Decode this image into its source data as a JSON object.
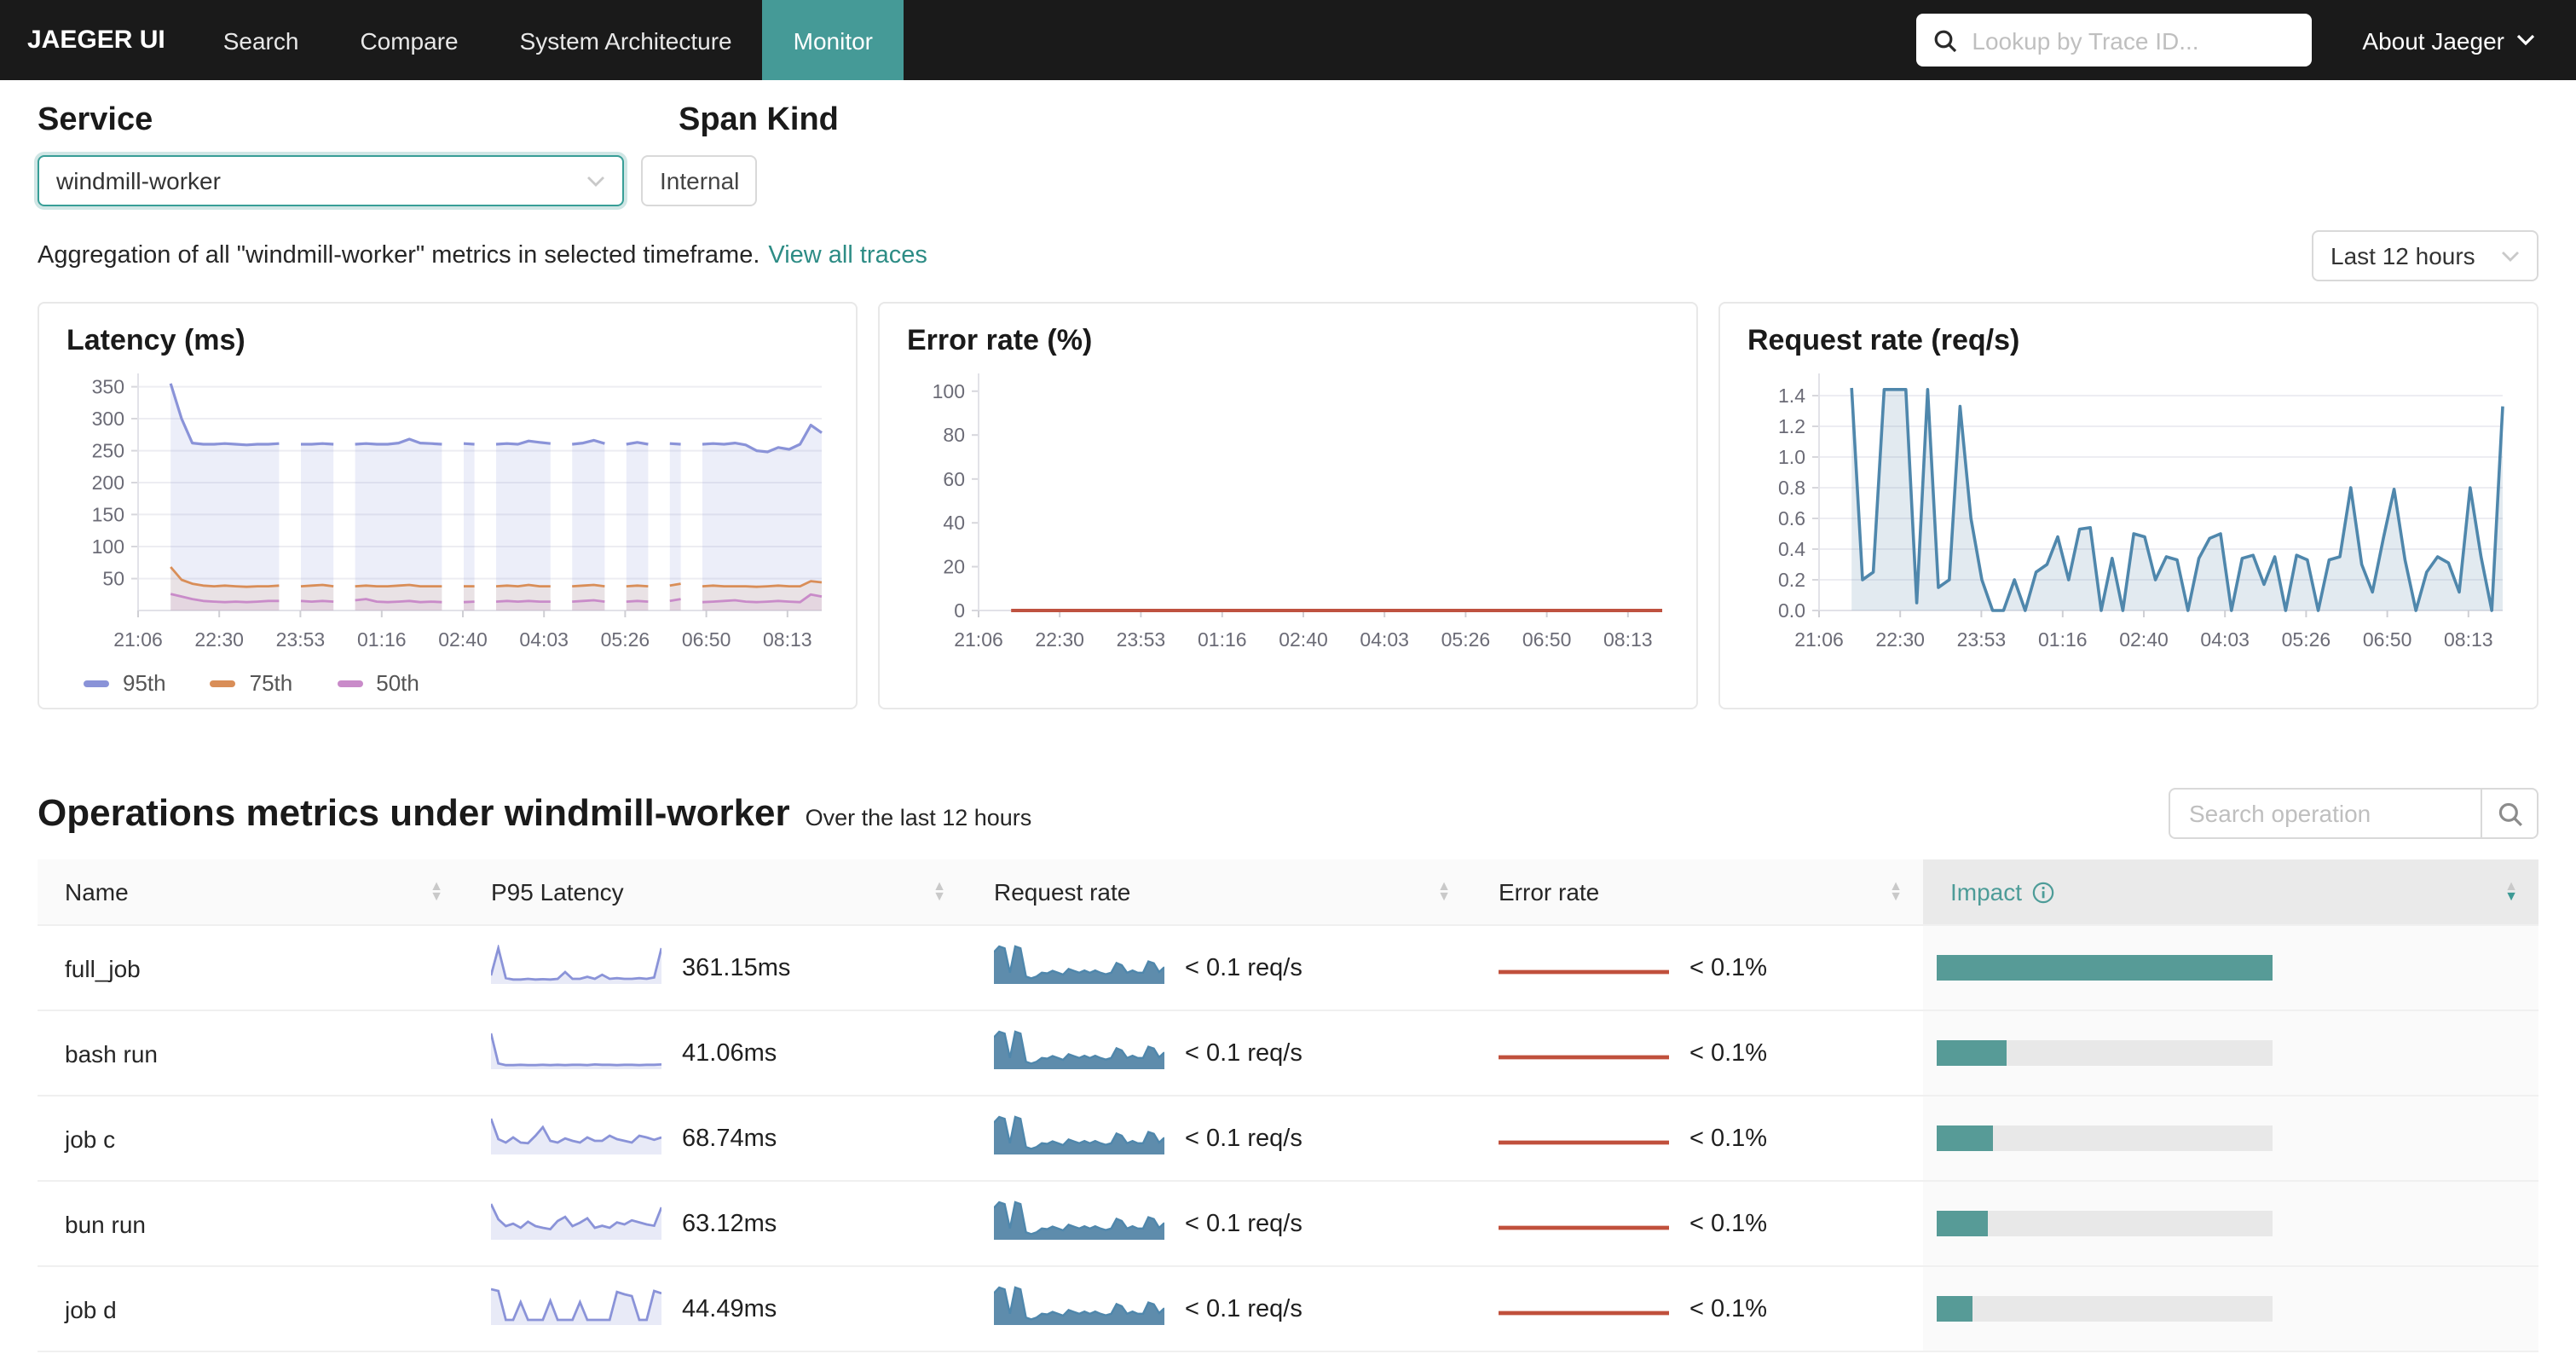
{
  "nav": {
    "brand": "JAEGER UI",
    "items": [
      {
        "label": "Search",
        "active": false
      },
      {
        "label": "Compare",
        "active": false
      },
      {
        "label": "System Architecture",
        "active": false
      },
      {
        "label": "Monitor",
        "active": true
      }
    ],
    "trace_search_placeholder": "Lookup by Trace ID...",
    "about_label": "About Jaeger"
  },
  "filters": {
    "service_label": "Service",
    "service_value": "windmill-worker",
    "span_kind_label": "Span Kind",
    "span_kind_value": "Internal",
    "aggregation_text": "Aggregation of all \"windmill-worker\" metrics in selected timeframe.",
    "view_all_traces_label": "View all traces",
    "timeframe_value": "Last 12 hours"
  },
  "colors": {
    "nav_bg": "#1a1a1a",
    "active_tab_teal": "#459a97",
    "link_teal": "#2d8c85",
    "impact_teal": "#579b97",
    "latency_95th": "#8a93d8",
    "latency_75th": "#d98e58",
    "latency_50th": "#c98bc9",
    "error_red": "#bf5240",
    "request_blue": "#4f87ac",
    "spark_latency": "#8a93d8",
    "spark_request_fill": "#5e8cac",
    "spark_error": "#c0503c"
  },
  "chart_data": [
    {
      "type": "line",
      "title": "Latency (ms)",
      "ylabel": "ms",
      "ylim": [
        0,
        360
      ],
      "yticks": [
        50,
        100,
        150,
        200,
        250,
        300,
        350
      ],
      "ydecimals": 0,
      "x_labels": [
        "21:06",
        "22:30",
        "23:53",
        "01:16",
        "02:40",
        "04:03",
        "05:26",
        "06:50",
        "08:13"
      ],
      "grid": true,
      "legend_position": "bottom",
      "series": [
        {
          "name": "95th",
          "color": "#8a93d8",
          "fill": "rgba(138,147,216,0.16)",
          "width": 1.6,
          "values": [
            null,
            null,
            null,
            355,
            300,
            262,
            260,
            260,
            261,
            260,
            259,
            260,
            260,
            261,
            null,
            260,
            260,
            261,
            260,
            null,
            260,
            261,
            260,
            260,
            262,
            268,
            262,
            261,
            260,
            null,
            261,
            260,
            null,
            260,
            261,
            260,
            265,
            263,
            261,
            null,
            260,
            262,
            266,
            261,
            null,
            260,
            263,
            260,
            null,
            261,
            260,
            null,
            260,
            261,
            260,
            262,
            259,
            250,
            248,
            255,
            252,
            260,
            290,
            278
          ]
        },
        {
          "name": "75th",
          "color": "#d98e58",
          "fill": "rgba(217,142,88,0.12)",
          "width": 1.4,
          "values": [
            null,
            null,
            null,
            68,
            48,
            42,
            39,
            38,
            39,
            38,
            37,
            38,
            38,
            39,
            null,
            38,
            39,
            40,
            38,
            null,
            38,
            39,
            38,
            38,
            39,
            40,
            38,
            38,
            38,
            null,
            38,
            38,
            null,
            38,
            39,
            38,
            40,
            38,
            38,
            null,
            38,
            39,
            40,
            38,
            null,
            38,
            39,
            38,
            null,
            39,
            42,
            null,
            38,
            39,
            38,
            38,
            38,
            37,
            38,
            39,
            38,
            38,
            46,
            44
          ]
        },
        {
          "name": "50th",
          "color": "#c98bc9",
          "fill": "rgba(201,139,201,0.14)",
          "width": 1.4,
          "values": [
            null,
            null,
            null,
            26,
            22,
            18,
            15,
            14,
            13,
            14,
            13,
            14,
            15,
            15,
            null,
            15,
            14,
            15,
            14,
            null,
            16,
            18,
            14,
            13,
            14,
            15,
            13,
            14,
            13,
            null,
            13,
            14,
            null,
            14,
            15,
            14,
            15,
            14,
            14,
            null,
            14,
            15,
            16,
            14,
            null,
            14,
            15,
            14,
            null,
            15,
            18,
            null,
            13,
            14,
            15,
            16,
            14,
            13,
            14,
            15,
            14,
            13,
            25,
            22
          ]
        }
      ]
    },
    {
      "type": "line",
      "title": "Error rate (%)",
      "ylabel": "%",
      "ylim": [
        0,
        105
      ],
      "yticks": [
        0,
        20,
        40,
        60,
        80,
        100
      ],
      "ydecimals": 0,
      "x_labels": [
        "21:06",
        "22:30",
        "23:53",
        "01:16",
        "02:40",
        "04:03",
        "05:26",
        "06:50",
        "08:13"
      ],
      "grid": false,
      "legend_position": "none",
      "series": [
        {
          "name": "error",
          "color": "#bf5240",
          "fill": null,
          "width": 2,
          "values": [
            null,
            null,
            null,
            0,
            0,
            0,
            0,
            0,
            0,
            0,
            0,
            0,
            0,
            0,
            0,
            0,
            0,
            0,
            0,
            0,
            0,
            0,
            0,
            0,
            0,
            0,
            0,
            0,
            0,
            0,
            0,
            0,
            0,
            0,
            0,
            0,
            0,
            0,
            0,
            0,
            0,
            0,
            0,
            0,
            0,
            0,
            0,
            0,
            0,
            0,
            0,
            0,
            0,
            0,
            0,
            0,
            0,
            0,
            0,
            0,
            0,
            0,
            0,
            0
          ]
        }
      ]
    },
    {
      "type": "line",
      "title": "Request rate (req/s)",
      "ylabel": "req/s",
      "ylim": [
        0,
        1.5
      ],
      "yticks": [
        0.0,
        0.2,
        0.4,
        0.6,
        0.8,
        1.0,
        1.2,
        1.4
      ],
      "ydecimals": 1,
      "x_labels": [
        "21:06",
        "22:30",
        "23:53",
        "01:16",
        "02:40",
        "04:03",
        "05:26",
        "06:50",
        "08:13"
      ],
      "grid": true,
      "legend_position": "none",
      "series": [
        {
          "name": "request rate",
          "color": "#4f87ac",
          "fill": "rgba(94,140,172,0.18)",
          "width": 1.8,
          "values": [
            null,
            null,
            null,
            1.45,
            0.2,
            0.25,
            1.44,
            1.44,
            1.44,
            0.05,
            1.44,
            0.15,
            0.2,
            1.33,
            0.6,
            0.2,
            0,
            0,
            0.2,
            0,
            0.25,
            0.3,
            0.48,
            0.2,
            0.53,
            0.54,
            0,
            0.34,
            0,
            0.5,
            0.48,
            0.2,
            0.35,
            0.33,
            0,
            0.34,
            0.47,
            0.5,
            0,
            0.34,
            0.36,
            0.17,
            0.35,
            0,
            0.36,
            0.33,
            0,
            0.33,
            0.35,
            0.8,
            0.3,
            0.12,
            0.47,
            0.79,
            0.33,
            0,
            0.25,
            0.35,
            0.31,
            0.12,
            0.8,
            0.35,
            0,
            1.33
          ]
        }
      ]
    }
  ],
  "operations": {
    "title": "Operations metrics under windmill-worker",
    "subtitle": "Over the last 12 hours",
    "search_placeholder": "Search operation",
    "columns": [
      {
        "label": "Name",
        "sortable": true,
        "sorted": null,
        "info": false
      },
      {
        "label": "P95 Latency",
        "sortable": true,
        "sorted": null,
        "info": false
      },
      {
        "label": "Request rate",
        "sortable": true,
        "sorted": null,
        "info": false
      },
      {
        "label": "Error rate",
        "sortable": true,
        "sorted": null,
        "info": false
      },
      {
        "label": "Impact",
        "sortable": true,
        "sorted": "desc",
        "info": true
      }
    ],
    "shared_request_spark": [
      0.85,
      1,
      0.95,
      0.3,
      1,
      0.95,
      0.2,
      0.15,
      0.2,
      0.3,
      0.28,
      0.35,
      0.3,
      0.25,
      0.4,
      0.35,
      0.3,
      0.36,
      0.3,
      0.36,
      0.3,
      0.26,
      0.3,
      0.56,
      0.5,
      0.3,
      0.36,
      0.3,
      0.3,
      0.6,
      0.55,
      0.32,
      0.45
    ],
    "rows": [
      {
        "name": "full_job",
        "p95_label": "361.15ms",
        "request_label": "< 0.1 req/s",
        "error_label": "< 0.1%",
        "impact_pct": 100,
        "p95_spark": [
          0.2,
          1,
          0.12,
          0.08,
          0.08,
          0.1,
          0.08,
          0.09,
          0.08,
          0.1,
          0.3,
          0.1,
          0.1,
          0.16,
          0.1,
          0.22,
          0.1,
          0.12,
          0.1,
          0.1,
          0.12,
          0.1,
          0.14,
          1
        ]
      },
      {
        "name": "bash run",
        "p95_label": "41.06ms",
        "request_label": "< 0.1 req/s",
        "error_label": "< 0.1%",
        "impact_pct": 21,
        "p95_spark": [
          1,
          0.12,
          0.07,
          0.07,
          0.08,
          0.07,
          0.07,
          0.08,
          0.07,
          0.08,
          0.07,
          0.08,
          0.08,
          0.07,
          0.09,
          0.08,
          0.08,
          0.07,
          0.08,
          0.08,
          0.07,
          0.08,
          0.08,
          0.09
        ]
      },
      {
        "name": "job c",
        "p95_label": "68.74ms",
        "request_label": "< 0.1 req/s",
        "error_label": "< 0.1%",
        "impact_pct": 17,
        "p95_spark": [
          1,
          0.4,
          0.3,
          0.45,
          0.3,
          0.28,
          0.5,
          0.75,
          0.35,
          0.3,
          0.42,
          0.35,
          0.3,
          0.45,
          0.35,
          0.35,
          0.5,
          0.4,
          0.35,
          0.3,
          0.5,
          0.45,
          0.38,
          0.45
        ]
      },
      {
        "name": "bun run",
        "p95_label": "63.12ms",
        "request_label": "< 0.1 req/s",
        "error_label": "< 0.1%",
        "impact_pct": 15,
        "p95_spark": [
          1,
          0.55,
          0.35,
          0.42,
          0.3,
          0.48,
          0.35,
          0.3,
          0.26,
          0.5,
          0.62,
          0.35,
          0.45,
          0.58,
          0.3,
          0.36,
          0.3,
          0.46,
          0.4,
          0.52,
          0.46,
          0.4,
          0.36,
          0.9
        ]
      },
      {
        "name": "job d",
        "p95_label": "44.49ms",
        "request_label": "< 0.1 req/s",
        "error_label": "< 0.1%",
        "impact_pct": 10.5,
        "p95_spark": [
          1,
          0.95,
          0.1,
          0.1,
          0.62,
          0.1,
          0.1,
          0.1,
          0.66,
          0.1,
          0.1,
          0.1,
          0.62,
          0.1,
          0.1,
          0.1,
          0.1,
          0.92,
          0.85,
          0.8,
          0.1,
          0.1,
          0.95,
          0.88
        ]
      }
    ]
  }
}
